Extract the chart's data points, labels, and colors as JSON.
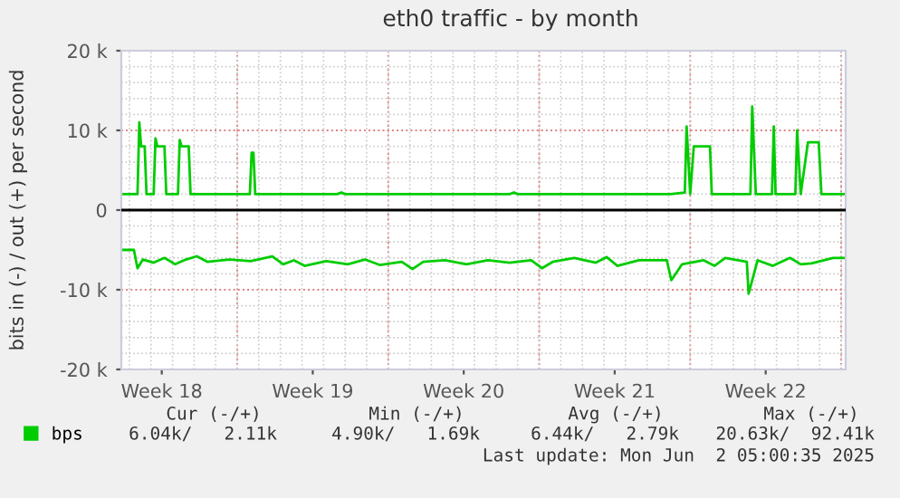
{
  "chart_data": {
    "type": "line",
    "title": "eth0 traffic - by month",
    "ylabel": "bits in (-) / out (+) per second",
    "xlim": [
      "2025-04-29T15:00",
      "2025-06-02T05:00"
    ],
    "xticks": [
      {
        "value": "2025-05-01T12:00",
        "label": "Week 18"
      },
      {
        "value": "2025-05-08T12:00",
        "label": "Week 19"
      },
      {
        "value": "2025-05-15T12:00",
        "label": "Week 20"
      },
      {
        "value": "2025-05-22T12:00",
        "label": "Week 21"
      },
      {
        "value": "2025-05-29T12:00",
        "label": "Week 22"
      }
    ],
    "ylim": [
      -20000,
      20000
    ],
    "yticks": [
      {
        "value": -20000,
        "label": "-20 k"
      },
      {
        "value": -10000,
        "label": "-10 k"
      },
      0,
      {
        "value": 10000,
        "label": "10 k"
      },
      {
        "value": 20000,
        "label": "20 k"
      }
    ],
    "grid": true,
    "legend": "bottom left",
    "line_style": "solid",
    "marker": "none",
    "ref_lines": [
      {
        "axis": "y",
        "value": 0,
        "color": "#000000"
      }
    ],
    "series": [
      {
        "name": "bps",
        "color": "#00cc00",
        "x": [
          "2025-04-29T15:00",
          "2025-04-30T09:00",
          "2025-04-30T11:00",
          "2025-04-30T13:00",
          "2025-04-30T17:00",
          "2025-04-30T19:00",
          "2025-05-01T03:00",
          "2025-05-01T05:00",
          "2025-05-01T07:00",
          "2025-05-01T15:00",
          "2025-05-01T17:00",
          "2025-05-02T06:00",
          "2025-05-02T08:00",
          "2025-05-02T10:00",
          "2025-05-02T18:00",
          "2025-05-02T20:00",
          "2025-05-05T14:00",
          "2025-05-05T16:00",
          "2025-05-05T18:00",
          "2025-05-05T20:00",
          "2025-05-09T15:00",
          "2025-05-09T20:00",
          "2025-05-10T00:00",
          "2025-05-17T15:00",
          "2025-05-17T20:00",
          "2025-05-18T00:00",
          "2025-05-25T02:00",
          "2025-05-25T18:00",
          "2025-05-25T20:00",
          "2025-05-26T00:00",
          "2025-05-26T04:00",
          "2025-05-26T06:00",
          "2025-05-26T22:00",
          "2025-05-27T00:00",
          "2025-05-28T19:00",
          "2025-05-28T21:00",
          "2025-05-29T01:00",
          "2025-05-29T19:00",
          "2025-05-29T21:00",
          "2025-05-29T23:00",
          "2025-05-30T21:00",
          "2025-05-30T23:00",
          "2025-05-31T01:00",
          "2025-05-31T03:00",
          "2025-05-31T11:00",
          "2025-05-31T13:00",
          "2025-05-31T23:00",
          "2025-06-01T02:00",
          "2025-06-02T04:00"
        ],
        "values": [
          2000,
          2000,
          11000,
          8000,
          8000,
          2000,
          2000,
          9000,
          8000,
          8000,
          2000,
          2000,
          8800,
          8000,
          8000,
          2000,
          2000,
          7200,
          7200,
          2000,
          2000,
          2200,
          2000,
          2000,
          2200,
          2000,
          2000,
          2200,
          10500,
          2000,
          8000,
          8000,
          8000,
          2000,
          2000,
          13000,
          2000,
          2000,
          10500,
          2000,
          2000,
          10000,
          6000,
          2000,
          8500,
          8500,
          8500,
          2000,
          2000
        ]
      },
      {
        "color": "#00cc00",
        "x": [
          "2025-04-29T15:00",
          "2025-04-30T05:00",
          "2025-04-30T09:00",
          "2025-04-30T15:00",
          "2025-05-01T03:00",
          "2025-05-01T15:00",
          "2025-05-02T03:00",
          "2025-05-02T15:00",
          "2025-05-03T03:00",
          "2025-05-03T15:00",
          "2025-05-04T15:00",
          "2025-05-05T15:00",
          "2025-05-06T15:00",
          "2025-05-07T03:00",
          "2025-05-07T15:00",
          "2025-05-08T03:00",
          "2025-05-09T03:00",
          "2025-05-10T03:00",
          "2025-05-10T22:00",
          "2025-05-11T15:00",
          "2025-05-12T15:00",
          "2025-05-13T03:00",
          "2025-05-13T15:00",
          "2025-05-14T15:00",
          "2025-05-15T15:00",
          "2025-05-16T15:00",
          "2025-05-17T15:00",
          "2025-05-18T15:00",
          "2025-05-19T03:00",
          "2025-05-19T15:00",
          "2025-05-20T15:00",
          "2025-05-21T15:00",
          "2025-05-22T03:00",
          "2025-05-22T15:00",
          "2025-05-23T15:00",
          "2025-05-24T22:00",
          "2025-05-25T03:00",
          "2025-05-25T15:00",
          "2025-05-26T15:00",
          "2025-05-27T03:00",
          "2025-05-27T15:00",
          "2025-05-28T15:00",
          "2025-05-28T17:00",
          "2025-05-29T03:00",
          "2025-05-29T20:00",
          "2025-05-30T15:00",
          "2025-05-31T03:00",
          "2025-05-31T15:00",
          "2025-06-01T15:00",
          "2025-06-02T04:00"
        ],
        "values": [
          -5000,
          -5000,
          -7300,
          -6200,
          -6600,
          -6000,
          -6800,
          -6200,
          -5800,
          -6500,
          -6200,
          -6400,
          -5800,
          -6800,
          -6300,
          -7000,
          -6400,
          -6800,
          -6200,
          -6900,
          -6500,
          -7400,
          -6500,
          -6300,
          -6800,
          -6300,
          -6600,
          -6300,
          -7300,
          -6500,
          -6000,
          -6600,
          -5900,
          -7000,
          -6300,
          -6300,
          -8800,
          -6800,
          -6300,
          -7000,
          -6000,
          -6500,
          -10500,
          -6300,
          -7000,
          -6000,
          -6800,
          -6700,
          -6000,
          -6000
        ]
      }
    ],
    "annotations": [
      "Cur (-/+)",
      "Min (-/+)",
      "Avg (-/+)",
      "Max (-/+)",
      "6.04k/   2.11k",
      "4.90k/   1.69k",
      "6.44k/   2.79k",
      "20.63k/  92.41k",
      "Last update: Mon Jun  2 05:00:35 2025"
    ]
  }
}
